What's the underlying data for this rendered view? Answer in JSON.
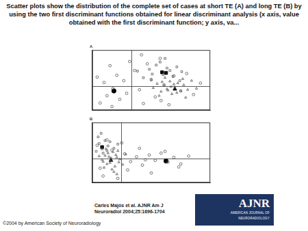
{
  "caption": "Scatter plots show the distribution of the complete set of cases at short TE (A) and long TE (B) by using the two first discriminant functions obtained for linear discriminant analysis (x axis, value obtained with the first discriminant function; y axis, va...",
  "citation": "Carles Majós et al. AJNR Am J Neuroradiol 2004;25:1696-1704",
  "copyright": "©2004 by American Society of Neuroradiology",
  "logo": {
    "title": "AJNR",
    "subtitle": "AMERICAN JOURNAL OF NEURORADIOLOGY"
  },
  "chart_data": [
    {
      "type": "scatter",
      "title": "A",
      "xlim": [
        -4,
        8
      ],
      "ylim": [
        -4,
        6
      ],
      "xticks": [
        0
      ],
      "yticks": [
        0
      ],
      "grid": true,
      "tick_labels": false,
      "series": [
        {
          "marker": "circle",
          "color": "#555555",
          "x": [
            -3.5,
            -3.2,
            -2.8,
            -2.5,
            -2.2,
            -1.9,
            -1.5,
            -1.2,
            -0.8,
            -0.5,
            -0.2,
            0.3,
            0.8,
            1.2,
            1.6,
            2.0,
            2.4,
            2.9,
            3.3,
            3.8,
            4.3,
            5.0,
            5.6,
            6.3,
            7.0,
            -2.0,
            1.0,
            3.0
          ],
          "values": [
            1.5,
            -2.8,
            0.6,
            -1.6,
            3.4,
            -0.4,
            1.8,
            -2.2,
            0.9,
            -1.2,
            4.1,
            2.6,
            -0.6,
            -2.9,
            3.7,
            1.1,
            -1.8,
            4.6,
            0.2,
            -3.1,
            1.7,
            -0.8,
            2.1,
            -1.4,
            0.5,
            -3.4,
            5.2,
            -2.4
          ]
        },
        {
          "marker": "triangle",
          "color": "#555555",
          "x": [
            2.2,
            2.6,
            3.0,
            3.3,
            3.6,
            3.9,
            4.1,
            4.4,
            4.7,
            5.0,
            5.3,
            5.7,
            6.1,
            2.8,
            3.4,
            4.0,
            4.6,
            5.2,
            3.1,
            4.3,
            5.5,
            6.6,
            2.0,
            3.7
          ],
          "values": [
            -0.3,
            0.4,
            -0.9,
            0.1,
            -0.5,
            0.8,
            -1.3,
            -0.2,
            0.5,
            -0.8,
            0.2,
            -0.6,
            0.9,
            -1.6,
            1.4,
            -0.1,
            -1.1,
            1.2,
            0.7,
            0.3,
            -1.9,
            -0.4,
            1.0,
            -0.7
          ]
        },
        {
          "marker": "square",
          "color": "#555555",
          "x": [
            1.8,
            2.5,
            3.2,
            3.9,
            4.6,
            1.2,
            2.9,
            3.6,
            4.2,
            5.1,
            2.1,
            3.4,
            0.6,
            4.9
          ],
          "values": [
            2.8,
            3.5,
            1.9,
            2.6,
            3.2,
            1.4,
            4.0,
            3.0,
            1.6,
            2.4,
            2.0,
            4.6,
            2.5,
            0.9
          ]
        },
        {
          "marker": "filledCircle",
          "color": "#000000",
          "x": [
            -1.8
          ],
          "values": [
            -0.8
          ]
        },
        {
          "marker": "filledTriangle",
          "color": "#000000",
          "x": [
            4.4
          ],
          "values": [
            -0.5
          ]
        },
        {
          "marker": "filledSquare",
          "color": "#000000",
          "x": [
            3.1,
            3.5
          ],
          "values": [
            2.3,
            2.2
          ]
        }
      ]
    },
    {
      "type": "scatter",
      "title": "B",
      "xlim": [
        -3,
        9
      ],
      "ylim": [
        -4,
        6
      ],
      "xticks": [
        0
      ],
      "yticks": [
        0
      ],
      "grid": true,
      "tick_labels": false,
      "series": [
        {
          "marker": "circle",
          "color": "#555555",
          "x": [
            -2.5,
            -1.9,
            -1.0,
            -0.4,
            0.3,
            0.9,
            1.5,
            2.1,
            2.8,
            3.4,
            4.0,
            4.7,
            5.3,
            6.0,
            6.8,
            -1.5,
            0.6,
            1.8,
            3.0,
            4.4,
            -2.2,
            0.0,
            2.4,
            5.8
          ],
          "values": [
            2.2,
            -2.9,
            1.4,
            -3.3,
            0.8,
            -0.5,
            0.3,
            -1.1,
            0.6,
            -0.3,
            0.9,
            -0.6,
            0.2,
            -0.9,
            0.4,
            3.1,
            -1.9,
            1.7,
            -2.4,
            1.2,
            -1.6,
            2.6,
            -0.2,
            -1.4
          ]
        },
        {
          "marker": "triangle",
          "color": "#555555",
          "x": [
            -2.0,
            -1.7,
            -1.5,
            -1.3,
            -1.1,
            -0.9,
            -0.7,
            -0.5,
            -0.3,
            -1.8,
            -1.4,
            -1.0,
            -0.6,
            -0.2,
            -1.6,
            -1.2,
            -0.8,
            -0.4,
            0.1,
            -2.3,
            -1.9,
            -1.1,
            -0.5,
            0.4
          ],
          "values": [
            -0.2,
            0.5,
            -0.9,
            0.3,
            -0.4,
            1.1,
            -1.3,
            0.2,
            -0.6,
            -1.5,
            0.9,
            -1.8,
            0.6,
            -0.1,
            1.6,
            -0.7,
            -2.2,
            1.3,
            -1.0,
            0.4,
            -0.5,
            0.1,
            -2.6,
            0.7
          ]
        },
        {
          "marker": "square",
          "color": "#555555",
          "x": [
            -2.6,
            -2.3,
            -2.0,
            -1.7,
            -1.4,
            -2.4,
            -1.9,
            -1.2,
            -0.8,
            -2.1,
            -1.5,
            -0.4
          ],
          "values": [
            1.2,
            2.5,
            1.6,
            3.0,
            2.1,
            3.6,
            0.9,
            2.8,
            1.7,
            4.2,
            1.3,
            2.4
          ]
        },
        {
          "marker": "filledSquare",
          "color": "#000000",
          "x": [
            -2.0
          ],
          "values": [
            1.9
          ]
        },
        {
          "marker": "filledTriangle",
          "color": "#000000",
          "x": [
            -1.1
          ],
          "values": [
            -0.3
          ]
        },
        {
          "marker": "filledCircle",
          "color": "#000000",
          "x": [
            4.5
          ],
          "values": [
            -0.4
          ]
        }
      ]
    }
  ]
}
